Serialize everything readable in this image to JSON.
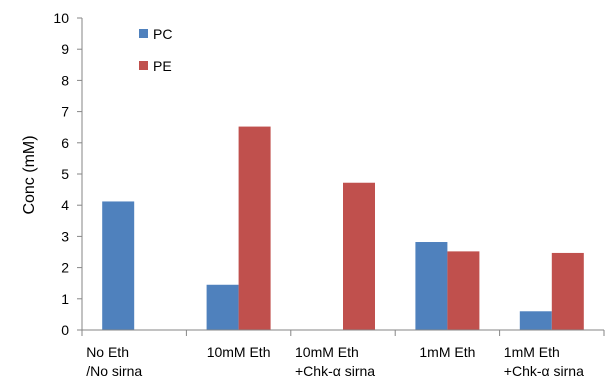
{
  "chart_data": {
    "type": "bar",
    "categories": [
      [
        "No Eth",
        "/No sirna"
      ],
      [
        "10mM Eth"
      ],
      [
        "10mM Eth",
        "+Chk-α sirna"
      ],
      [
        "1mM Eth"
      ],
      [
        "1mM Eth",
        "+Chk-α sirna"
      ]
    ],
    "series": [
      {
        "name": "PC",
        "values": [
          4.12,
          1.45,
          0,
          2.82,
          0.6
        ],
        "color": "#4F81BD"
      },
      {
        "name": "PE",
        "values": [
          0,
          6.52,
          4.72,
          2.52,
          2.47
        ],
        "color": "#C0504D"
      }
    ],
    "title": "",
    "xlabel": "",
    "ylabel": "Conc (mM)",
    "ylim": [
      0,
      10
    ],
    "yticks": [
      "0",
      "1",
      "2",
      "3",
      "4",
      "5",
      "6",
      "7",
      "8",
      "9",
      "10"
    ],
    "grid": false,
    "legend": "top-left"
  }
}
